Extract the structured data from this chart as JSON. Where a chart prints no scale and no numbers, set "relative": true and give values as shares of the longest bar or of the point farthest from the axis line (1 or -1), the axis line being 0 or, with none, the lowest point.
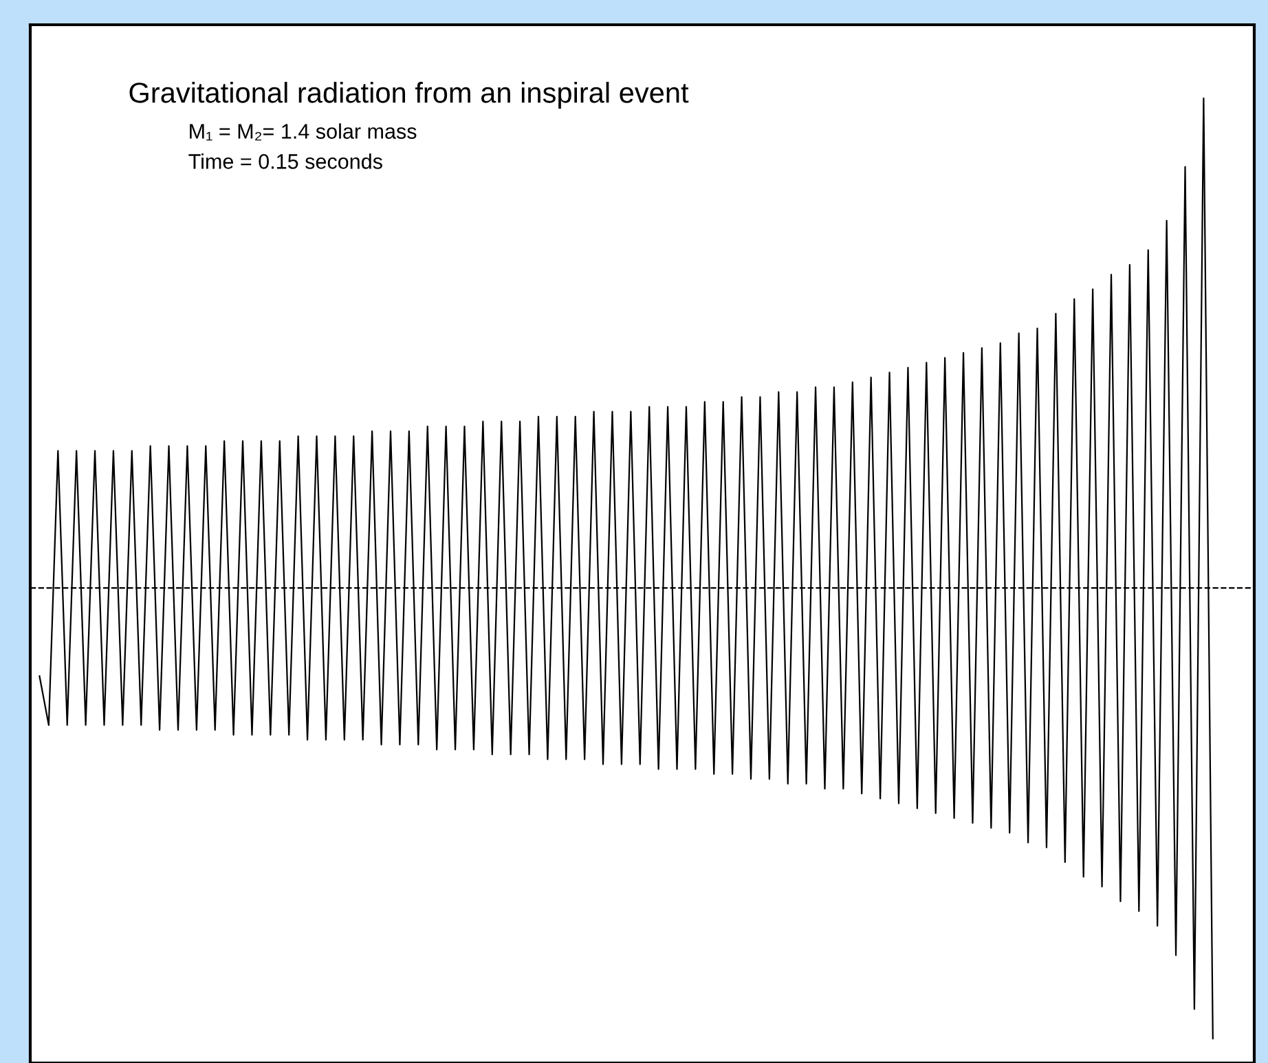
{
  "chart_data": {
    "type": "line",
    "relative": true,
    "title": "Gravitational radiation from an inspiral event",
    "annotations": [
      "M₁ = M₂= 1.4 solar mass",
      "Time = 0.15 seconds"
    ],
    "legend": false,
    "marker": "none",
    "line_style": "solid",
    "ref_lines": [
      {
        "axis": "y",
        "value": 0,
        "color": "#000000",
        "line_style": "dashed"
      }
    ],
    "categories": [
      null,
      null,
      null,
      null,
      null,
      null,
      null,
      null,
      null,
      null,
      null,
      null,
      null,
      null,
      null,
      null,
      null,
      null,
      null,
      null,
      null,
      null,
      null,
      null,
      null,
      null,
      null,
      null,
      null,
      null,
      null,
      null,
      null,
      null,
      null,
      null,
      null,
      null,
      null,
      null,
      null,
      null,
      null,
      null,
      null,
      null,
      null,
      null,
      null,
      null,
      null,
      null,
      null,
      null,
      null,
      null,
      null,
      null,
      null,
      null,
      null,
      null,
      null,
      null,
      null,
      null,
      null,
      null,
      null,
      null,
      null,
      null,
      null,
      null,
      null,
      null,
      null,
      null,
      null,
      null,
      null,
      null,
      null,
      null,
      null,
      null,
      null,
      null,
      null,
      null,
      null,
      null,
      null,
      null,
      null,
      null,
      null,
      null,
      null,
      null,
      null,
      null,
      null,
      null,
      null,
      null,
      null,
      null,
      null,
      null,
      null,
      null,
      null,
      null,
      null,
      null,
      null,
      null,
      null,
      null,
      null,
      null,
      null,
      null,
      null,
      null,
      null,
      null
    ],
    "series": [
      {
        "color": "#000000",
        "values": [
          -0.18,
          -0.28,
          0.28,
          -0.28,
          0.28,
          -0.28,
          0.28,
          -0.28,
          0.28,
          -0.28,
          0.28,
          -0.28,
          0.29,
          -0.29,
          0.29,
          -0.29,
          0.29,
          -0.29,
          0.29,
          -0.29,
          0.3,
          -0.3,
          0.3,
          -0.3,
          0.3,
          -0.3,
          0.3,
          -0.3,
          0.31,
          -0.31,
          0.31,
          -0.31,
          0.31,
          -0.31,
          0.31,
          -0.31,
          0.32,
          -0.32,
          0.32,
          -0.32,
          0.32,
          -0.32,
          0.33,
          -0.33,
          0.33,
          -0.33,
          0.33,
          -0.33,
          0.34,
          -0.34,
          0.34,
          -0.34,
          0.34,
          -0.34,
          0.35,
          -0.35,
          0.35,
          -0.35,
          0.35,
          -0.35,
          0.36,
          -0.36,
          0.36,
          -0.36,
          0.36,
          -0.36,
          0.37,
          -0.37,
          0.37,
          -0.37,
          0.37,
          -0.37,
          0.38,
          -0.38,
          0.38,
          -0.38,
          0.39,
          -0.39,
          0.39,
          -0.39,
          0.4,
          -0.4,
          0.4,
          -0.4,
          0.41,
          -0.41,
          0.41,
          -0.41,
          0.42,
          -0.42,
          0.43,
          -0.43,
          0.44,
          -0.44,
          0.45,
          -0.45,
          0.46,
          -0.46,
          0.47,
          -0.47,
          0.48,
          -0.48,
          0.49,
          -0.49,
          0.5,
          -0.5,
          0.52,
          -0.52,
          0.53,
          -0.53,
          0.56,
          -0.56,
          0.59,
          -0.59,
          0.61,
          -0.61,
          0.64,
          -0.64,
          0.66,
          -0.66,
          0.69,
          -0.69,
          0.75,
          -0.75,
          0.86,
          -0.86,
          1.0,
          -0.92
        ]
      }
    ]
  }
}
